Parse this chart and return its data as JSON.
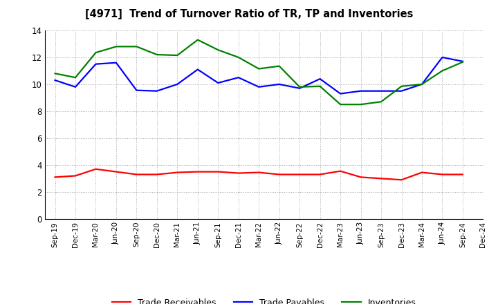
{
  "title": "[4971]  Trend of Turnover Ratio of TR, TP and Inventories",
  "x_labels": [
    "Sep-19",
    "Dec-19",
    "Mar-20",
    "Jun-20",
    "Sep-20",
    "Dec-20",
    "Mar-21",
    "Jun-21",
    "Sep-21",
    "Dec-21",
    "Mar-22",
    "Jun-22",
    "Sep-22",
    "Dec-22",
    "Mar-23",
    "Jun-23",
    "Sep-23",
    "Dec-23",
    "Mar-24",
    "Jun-24",
    "Sep-24",
    "Dec-24"
  ],
  "trade_receivables": [
    3.1,
    3.2,
    3.7,
    3.5,
    3.3,
    3.3,
    3.45,
    3.5,
    3.5,
    3.4,
    3.45,
    3.3,
    3.3,
    3.3,
    3.55,
    3.1,
    3.0,
    2.9,
    3.45,
    3.3,
    3.3,
    null
  ],
  "trade_payables": [
    10.3,
    9.8,
    11.5,
    11.6,
    9.55,
    9.5,
    10.0,
    11.1,
    10.1,
    10.5,
    9.8,
    10.0,
    9.7,
    10.4,
    9.3,
    9.5,
    9.5,
    9.5,
    10.0,
    12.0,
    11.7,
    null
  ],
  "inventories": [
    10.8,
    10.5,
    12.35,
    12.8,
    12.8,
    12.2,
    12.15,
    13.3,
    12.55,
    12.0,
    11.15,
    11.35,
    9.8,
    9.85,
    8.5,
    8.5,
    8.7,
    9.85,
    10.0,
    11.0,
    11.65,
    null
  ],
  "ylim": [
    0.0,
    14.0
  ],
  "yticks": [
    0.0,
    2.0,
    4.0,
    6.0,
    8.0,
    10.0,
    12.0,
    14.0
  ],
  "ytick_labels": [
    "0",
    "2",
    "4",
    "6",
    "8",
    "10",
    "12",
    "14"
  ],
  "color_tr": "#FF0000",
  "color_tp": "#0000FF",
  "color_inv": "#008000",
  "legend_labels": [
    "Trade Receivables",
    "Trade Payables",
    "Inventories"
  ],
  "background_color": "#FFFFFF",
  "grid_color": "#AAAAAA"
}
